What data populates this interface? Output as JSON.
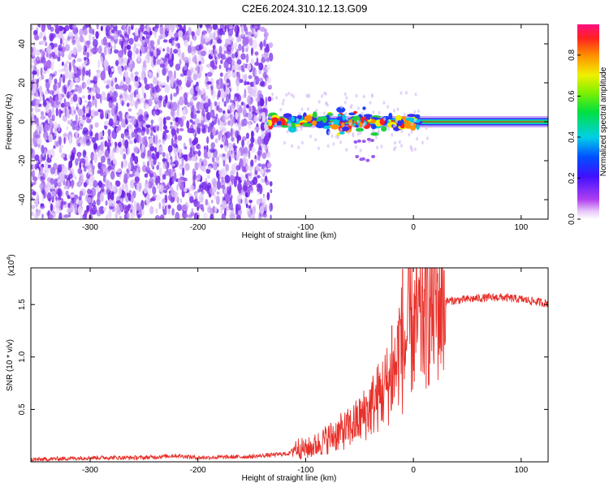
{
  "title": "C2E6.2024.310.12.13.G09",
  "colors": {
    "snr_line": "#e8302a",
    "axis": "#000000",
    "background": "#ffffff"
  },
  "chart_data": [
    {
      "type": "heatmap",
      "xlabel": "Height of straight line (km)",
      "ylabel": "Frequency (Hz)",
      "xlim": [
        -355,
        125
      ],
      "ylim": [
        -50,
        50
      ],
      "xticks": [
        -300,
        -200,
        -100,
        0,
        100
      ],
      "yticks": [
        -40,
        -20,
        0,
        20,
        40
      ],
      "colorbar": {
        "label": "Normalized spectral amplitude",
        "range": [
          0.0,
          0.95
        ],
        "ticks": [
          "0.0",
          "0.2",
          "0.4",
          "0.6",
          "0.8"
        ],
        "colormap": "rainbow (magenta-blue-cyan-green-yellow-red)"
      },
      "features": {
        "noise_region_x": [
          -355,
          -132
        ],
        "signal_band_center_hz": 0,
        "signal_band_start_km": -135,
        "faint_blobs_hz": [
          -10,
          -19
        ]
      }
    },
    {
      "type": "line",
      "xlabel": "Height of straight line (km)",
      "ylabel": "SNR (10 * v/v)",
      "multiplier": "(x10",
      "multiplier_exp": "4",
      "xlim": [
        -355,
        125
      ],
      "ylim": [
        0,
        1.85
      ],
      "xticks": [
        -300,
        -200,
        -100,
        0,
        100
      ],
      "yticks": [
        0.5,
        1.0,
        1.5
      ],
      "series": [
        {
          "x": [
            -355,
            -300,
            -250,
            -220,
            -200,
            -150,
            -115,
            -110,
            -100,
            -90,
            -80,
            -70,
            -60,
            -50,
            -40,
            -30,
            -20,
            -15,
            -12,
            -10,
            -5,
            0,
            5,
            10,
            15,
            20,
            25,
            30,
            40,
            50,
            60,
            80,
            100,
            125
          ],
          "y": [
            0.02,
            0.04,
            0.04,
            0.06,
            0.04,
            0.05,
            0.08,
            0.14,
            0.12,
            0.16,
            0.22,
            0.27,
            0.32,
            0.4,
            0.52,
            0.65,
            0.8,
            0.95,
            1.25,
            0.95,
            1.25,
            1.28,
            1.32,
            1.38,
            1.45,
            1.5,
            1.52,
            1.53,
            1.54,
            1.55,
            1.56,
            1.57,
            1.55,
            1.51
          ],
          "spikes": [
            {
              "x": -10,
              "y": 1.84
            },
            {
              "x": 10,
              "y": 1.65
            },
            {
              "x": -20,
              "y": 1.3
            }
          ]
        }
      ]
    }
  ]
}
